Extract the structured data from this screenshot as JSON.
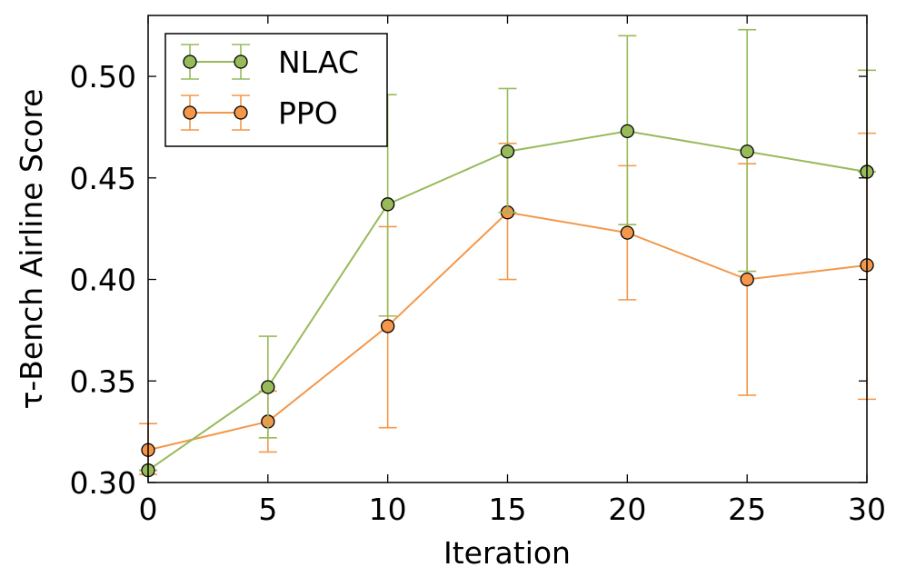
{
  "chart_data": {
    "type": "line",
    "title": "",
    "xlabel": "Iteration",
    "ylabel": "τ-Bench Airline Score",
    "xlim": [
      0,
      30
    ],
    "ylim": [
      0.3,
      0.53
    ],
    "xticks": [
      0,
      5,
      10,
      15,
      20,
      25,
      30
    ],
    "xtick_labels": [
      "0",
      "5",
      "10",
      "15",
      "20",
      "25",
      "30"
    ],
    "yticks": [
      0.3,
      0.35,
      0.4,
      0.45,
      0.5
    ],
    "ytick_labels": [
      "0.30",
      "0.35",
      "0.40",
      "0.45",
      "0.50"
    ],
    "grid": false,
    "legend_position": "top-left",
    "x": [
      0,
      5,
      10,
      15,
      20,
      25,
      30
    ],
    "series": [
      {
        "name": "NLAC",
        "color": "#97bb5a",
        "values": [
          0.306,
          0.347,
          0.437,
          0.463,
          0.473,
          0.463,
          0.453
        ],
        "err_low": [
          0.306,
          0.322,
          0.382,
          0.433,
          0.427,
          0.404,
          0.453
        ],
        "err_high": [
          0.306,
          0.372,
          0.491,
          0.494,
          0.52,
          0.523,
          0.503
        ]
      },
      {
        "name": "PPO",
        "color": "#f4974a",
        "values": [
          0.316,
          0.33,
          0.377,
          0.433,
          0.423,
          0.4,
          0.407
        ],
        "err_low": [
          0.304,
          0.315,
          0.327,
          0.4,
          0.39,
          0.343,
          0.341
        ],
        "err_high": [
          0.329,
          0.345,
          0.426,
          0.467,
          0.456,
          0.457,
          0.472
        ]
      }
    ]
  }
}
